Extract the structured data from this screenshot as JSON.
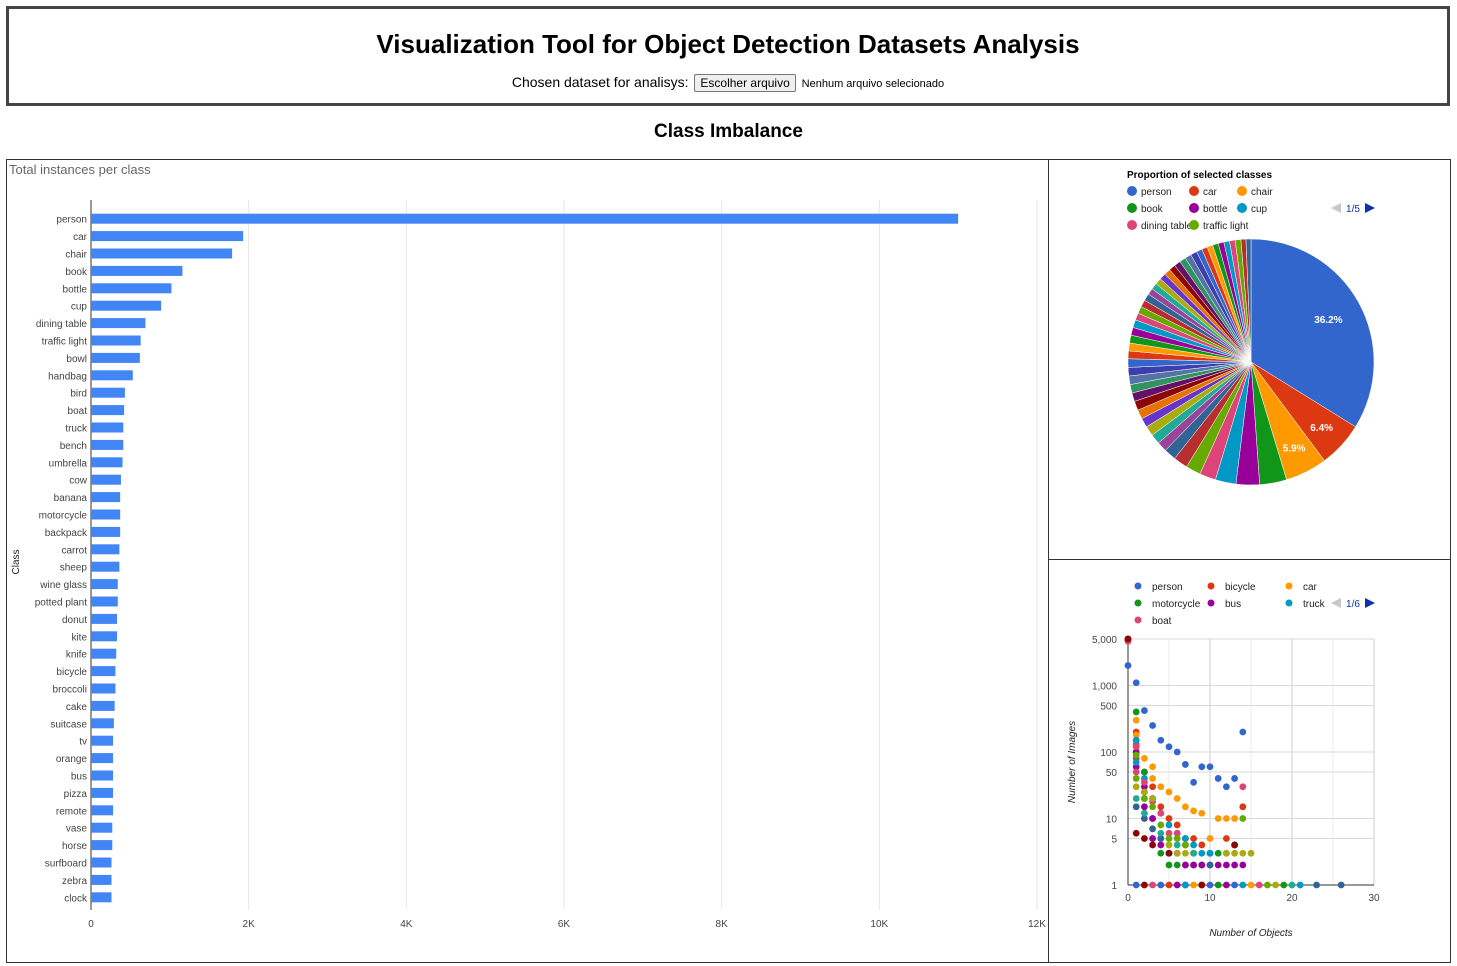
{
  "header": {
    "title": "Visualization Tool for Object Detection Datasets Analysis",
    "picker_label": "Chosen dataset for analisys:",
    "file_button": "Escolher arquivo",
    "file_status": "Nenhum arquivo selecionado"
  },
  "section": {
    "title": "Class Imbalance"
  },
  "colors": {
    "bar": "#4285f4",
    "panel_border": "#333333"
  },
  "chart_data": [
    {
      "type": "bar",
      "orientation": "horizontal",
      "title": "Total instances per class",
      "ylabel": "Class",
      "xlabel": "",
      "xlim": [
        0,
        12000
      ],
      "xticks": [
        0,
        2000,
        4000,
        6000,
        8000,
        10000,
        12000
      ],
      "xtick_labels": [
        "0",
        "2K",
        "4K",
        "6K",
        "8K",
        "10K",
        "12K"
      ],
      "grid": true,
      "categories": [
        "person",
        "car",
        "chair",
        "book",
        "bottle",
        "cup",
        "dining table",
        "traffic light",
        "bowl",
        "handbag",
        "bird",
        "boat",
        "truck",
        "bench",
        "umbrella",
        "cow",
        "banana",
        "motorcycle",
        "backpack",
        "carrot",
        "sheep",
        "wine glass",
        "potted plant",
        "donut",
        "kite",
        "knife",
        "bicycle",
        "broccoli",
        "cake",
        "suitcase",
        "tv",
        "orange",
        "bus",
        "pizza",
        "remote",
        "vase",
        "horse",
        "surfboard",
        "zebra",
        "clock"
      ],
      "values": [
        11000,
        1930,
        1790,
        1160,
        1020,
        890,
        690,
        630,
        620,
        530,
        430,
        420,
        410,
        410,
        400,
        380,
        370,
        370,
        370,
        360,
        360,
        340,
        340,
        330,
        330,
        320,
        310,
        310,
        300,
        290,
        280,
        280,
        280,
        280,
        280,
        270,
        270,
        260,
        260,
        260
      ]
    },
    {
      "type": "pie",
      "title": "Proportion of selected classes",
      "legend": {
        "position": "top",
        "page": "1/5",
        "entries": [
          "person",
          "car",
          "chair",
          "book",
          "bottle",
          "cup",
          "dining table",
          "traffic light"
        ]
      },
      "slices": [
        36.2,
        6.4,
        5.9,
        3.8,
        3.3,
        2.9,
        2.3,
        2.1,
        2.0,
        1.7,
        1.4,
        1.4,
        1.4,
        1.3,
        1.3,
        1.3,
        1.2,
        1.2,
        1.2,
        1.2,
        1.2,
        1.1,
        1.1,
        1.1,
        1.1,
        1.1,
        1.0,
        1.0,
        1.0,
        1.0,
        0.9,
        0.9,
        0.9,
        0.9,
        0.9,
        0.9,
        0.9,
        0.9,
        0.9,
        0.9,
        0.8,
        0.8,
        0.8,
        0.8,
        0.8,
        0.8,
        0.8,
        0.8,
        0.7,
        0.7
      ],
      "slice_labels": [
        "36.2%",
        "6.4%",
        "5.9%"
      ],
      "colors": [
        "#3366cc",
        "#dc3912",
        "#ff9900",
        "#109618",
        "#990099",
        "#0099c6",
        "#dd4477",
        "#66aa00",
        "#b82e2e",
        "#316395",
        "#994499",
        "#22aa99",
        "#aaaa11",
        "#6633cc",
        "#e67300",
        "#8b0707",
        "#651067",
        "#329262",
        "#5574a6",
        "#3b3eac"
      ]
    },
    {
      "type": "scatter",
      "xlabel": "Number of Objects",
      "ylabel": "Number of Images",
      "yscale": "log",
      "xlim": [
        0,
        30
      ],
      "ylim": [
        1,
        5000
      ],
      "xticks": [
        0,
        10,
        20,
        30
      ],
      "yticks": [
        1,
        5,
        10,
        50,
        100,
        500,
        1000,
        5000
      ],
      "ytick_labels": [
        "1",
        "5",
        "10",
        "50",
        "100",
        "500",
        "1,000",
        "5,000"
      ],
      "grid": true,
      "legend": {
        "position": "top",
        "page": "1/6",
        "entries": [
          "person",
          "bicycle",
          "car",
          "motorcycle",
          "bus",
          "truck",
          "boat"
        ]
      },
      "series": [
        {
          "name": "person",
          "color": "#3366cc",
          "points": [
            [
              0,
              5000
            ],
            [
              0,
              2000
            ],
            [
              1,
              1100
            ],
            [
              2,
              420
            ],
            [
              3,
              250
            ],
            [
              4,
              150
            ],
            [
              5,
              120
            ],
            [
              6,
              100
            ],
            [
              7,
              65
            ],
            [
              8,
              35
            ],
            [
              9,
              60
            ],
            [
              10,
              60
            ],
            [
              11,
              40
            ],
            [
              12,
              30
            ],
            [
              13,
              40
            ],
            [
              14,
              200
            ],
            [
              1,
              1
            ],
            [
              4,
              1
            ],
            [
              7,
              1
            ],
            [
              10,
              1
            ],
            [
              13,
              1
            ]
          ]
        },
        {
          "name": "bicycle",
          "color": "#dc3912",
          "points": [
            [
              0,
              5000
            ],
            [
              1,
              200
            ],
            [
              1,
              130
            ],
            [
              1,
              80
            ],
            [
              2,
              50
            ],
            [
              3,
              30
            ],
            [
              3,
              20
            ],
            [
              4,
              15
            ],
            [
              5,
              10
            ],
            [
              6,
              8
            ],
            [
              7,
              5
            ],
            [
              8,
              5
            ],
            [
              9,
              4
            ],
            [
              10,
              3
            ],
            [
              12,
              5
            ],
            [
              14,
              15
            ],
            [
              5,
              1
            ],
            [
              9,
              1
            ]
          ]
        },
        {
          "name": "car",
          "color": "#ff9900",
          "points": [
            [
              0,
              4800
            ],
            [
              1,
              300
            ],
            [
              1,
              180
            ],
            [
              1,
              120
            ],
            [
              2,
              80
            ],
            [
              3,
              60
            ],
            [
              3,
              40
            ],
            [
              4,
              30
            ],
            [
              5,
              25
            ],
            [
              6,
              20
            ],
            [
              7,
              15
            ],
            [
              8,
              13
            ],
            [
              9,
              12
            ],
            [
              10,
              5
            ],
            [
              11,
              10
            ],
            [
              12,
              10
            ],
            [
              13,
              10
            ],
            [
              8,
              1
            ],
            [
              15,
              1
            ]
          ]
        },
        {
          "name": "motorcycle",
          "color": "#109618",
          "points": [
            [
              0,
              5000
            ],
            [
              1,
              400
            ],
            [
              1,
              150
            ],
            [
              1,
              100
            ],
            [
              2,
              50
            ],
            [
              2,
              20
            ],
            [
              3,
              10
            ],
            [
              4,
              3
            ],
            [
              5,
              2
            ],
            [
              6,
              2
            ],
            [
              7,
              2
            ],
            [
              8,
              2
            ],
            [
              9,
              2
            ],
            [
              10,
              3
            ],
            [
              11,
              3
            ],
            [
              12,
              3
            ],
            [
              13,
              4
            ],
            [
              11,
              1
            ],
            [
              19,
              1
            ]
          ]
        },
        {
          "name": "bus",
          "color": "#990099",
          "points": [
            [
              0,
              5000
            ],
            [
              1,
              100
            ],
            [
              1,
              60
            ],
            [
              2,
              30
            ],
            [
              2,
              15
            ],
            [
              3,
              10
            ],
            [
              3,
              5
            ],
            [
              4,
              4
            ],
            [
              5,
              3
            ],
            [
              6,
              3
            ],
            [
              7,
              2
            ],
            [
              8,
              2
            ],
            [
              9,
              2
            ],
            [
              10,
              2
            ],
            [
              11,
              2
            ],
            [
              12,
              2
            ],
            [
              13,
              2
            ],
            [
              14,
              2
            ],
            [
              6,
              1
            ],
            [
              12,
              1
            ]
          ]
        },
        {
          "name": "truck",
          "color": "#0099c6",
          "points": [
            [
              0,
              5000
            ],
            [
              1,
              150
            ],
            [
              1,
              70
            ],
            [
              2,
              40
            ],
            [
              2,
              25
            ],
            [
              3,
              20
            ],
            [
              4,
              12
            ],
            [
              5,
              8
            ],
            [
              6,
              6
            ],
            [
              7,
              5
            ],
            [
              8,
              4
            ],
            [
              9,
              3
            ],
            [
              10,
              3
            ],
            [
              7,
              1
            ],
            [
              14,
              1
            ],
            [
              21,
              1
            ]
          ]
        },
        {
          "name": "boat",
          "color": "#dd4477",
          "points": [
            [
              0,
              4600
            ],
            [
              1,
              120
            ],
            [
              1,
              50
            ],
            [
              2,
              35
            ],
            [
              3,
              18
            ],
            [
              4,
              12
            ],
            [
              5,
              6
            ],
            [
              6,
              6
            ],
            [
              7,
              4
            ],
            [
              8,
              3
            ],
            [
              14,
              30
            ],
            [
              3,
              1
            ],
            [
              16,
              1
            ]
          ]
        },
        {
          "name": "",
          "color": "#66aa00",
          "points": [
            [
              0,
              5000
            ],
            [
              1,
              90
            ],
            [
              1,
              40
            ],
            [
              2,
              20
            ],
            [
              3,
              15
            ],
            [
              4,
              8
            ],
            [
              5,
              5
            ],
            [
              6,
              5
            ],
            [
              7,
              4
            ],
            [
              8,
              3
            ],
            [
              14,
              10
            ],
            [
              17,
              1
            ]
          ]
        },
        {
          "name": "",
          "color": "#aaaa11",
          "points": [
            [
              1,
              30
            ],
            [
              2,
              25
            ],
            [
              3,
              20
            ],
            [
              4,
              5
            ],
            [
              5,
              4
            ],
            [
              6,
              3
            ],
            [
              7,
              3
            ],
            [
              12,
              3
            ],
            [
              13,
              3
            ],
            [
              14,
              3
            ],
            [
              15,
              3
            ],
            [
              18,
              1
            ]
          ]
        },
        {
          "name": "",
          "color": "#316395",
          "points": [
            [
              1,
              15
            ],
            [
              2,
              10
            ],
            [
              3,
              7
            ],
            [
              4,
              5
            ],
            [
              5,
              3
            ],
            [
              10,
              2
            ],
            [
              23,
              1
            ],
            [
              26,
              1
            ]
          ]
        },
        {
          "name": "",
          "color": "#8b0707",
          "points": [
            [
              0,
              5000
            ],
            [
              1,
              6
            ],
            [
              2,
              5
            ],
            [
              3,
              4
            ],
            [
              5,
              3
            ],
            [
              2,
              1
            ],
            [
              9,
              1
            ],
            [
              13,
              4
            ]
          ]
        },
        {
          "name": "",
          "color": "#22aa99",
          "points": [
            [
              1,
              20
            ],
            [
              2,
              12
            ],
            [
              4,
              6
            ],
            [
              6,
              4
            ],
            [
              8,
              3
            ],
            [
              20,
              1
            ]
          ]
        }
      ]
    }
  ]
}
